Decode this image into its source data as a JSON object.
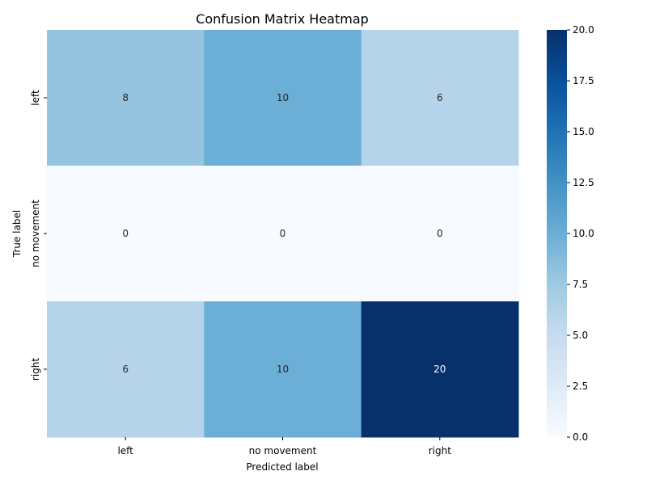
{
  "chart_data": {
    "type": "heatmap",
    "title": "Confusion Matrix Heatmap",
    "xlabel": "Predicted label",
    "ylabel": "True label",
    "x_categories": [
      "left",
      "no movement",
      "right"
    ],
    "y_categories": [
      "left",
      "no movement",
      "right"
    ],
    "values": [
      [
        8,
        10,
        6
      ],
      [
        0,
        0,
        0
      ],
      [
        6,
        10,
        20
      ]
    ],
    "colorbar": {
      "min": 0,
      "max": 20,
      "ticks": [
        "0.0",
        "2.5",
        "5.0",
        "7.5",
        "10.0",
        "12.5",
        "15.0",
        "17.5",
        "20.0"
      ],
      "colormap": "Blues"
    },
    "colors": {
      "cmap_stops": [
        "#f7fbff",
        "#deebf7",
        "#c6dbef",
        "#9ecae1",
        "#6baed6",
        "#4292c6",
        "#2171b5",
        "#08519c",
        "#08306b"
      ],
      "text_dark": "#262626",
      "text_light": "#ffffff"
    }
  }
}
